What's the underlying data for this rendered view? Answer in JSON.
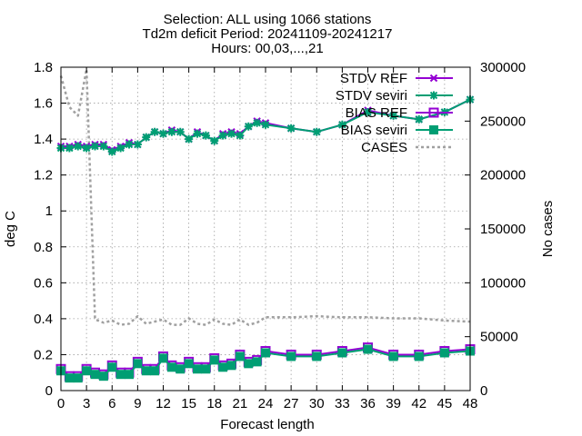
{
  "chart_data": {
    "type": "line",
    "title_lines": [
      "Selection: ALL using  1066 stations",
      "Td2m deficit   Period: 20241109-20241217",
      "Hours: 00,03,...,21"
    ],
    "xlabel": "Forecast length",
    "ylabel": "deg C",
    "y2label": "No cases",
    "xlim": [
      0,
      48
    ],
    "ylim": [
      0,
      1.8
    ],
    "y2lim": [
      0,
      300000
    ],
    "xticks": [
      0,
      3,
      6,
      9,
      12,
      15,
      18,
      21,
      24,
      27,
      30,
      33,
      36,
      39,
      42,
      45,
      48
    ],
    "yticks": [
      "0",
      "0.2",
      "0.4",
      "0.6",
      "0.8",
      "1",
      "1.2",
      "1.4",
      "1.6",
      "1.8"
    ],
    "y2ticks": [
      "0",
      "50000",
      "100000",
      "150000",
      "200000",
      "250000",
      "300000"
    ],
    "grid": true,
    "legend_position": "top-right",
    "series": [
      {
        "name": "STDV REF",
        "color": "#9400d3",
        "marker": "x",
        "axis": "y",
        "x": [
          0,
          1,
          2,
          3,
          4,
          5,
          6,
          7,
          8,
          9,
          10,
          11,
          12,
          13,
          14,
          15,
          16,
          17,
          18,
          19,
          20,
          21,
          22,
          23,
          24,
          27,
          30,
          33,
          36,
          39,
          42,
          45,
          48
        ],
        "values": [
          1.36,
          1.36,
          1.37,
          1.36,
          1.37,
          1.37,
          1.34,
          1.36,
          1.38,
          1.37,
          1.41,
          1.44,
          1.43,
          1.45,
          1.44,
          1.4,
          1.44,
          1.42,
          1.39,
          1.43,
          1.44,
          1.43,
          1.47,
          1.5,
          1.49,
          1.46,
          1.44,
          1.48,
          1.56,
          1.53,
          1.51,
          1.55,
          1.62
        ]
      },
      {
        "name": "STDV seviri",
        "color": "#009e73",
        "marker": "*",
        "axis": "y",
        "x": [
          0,
          1,
          2,
          3,
          4,
          5,
          6,
          7,
          8,
          9,
          10,
          11,
          12,
          13,
          14,
          15,
          16,
          17,
          18,
          19,
          20,
          21,
          22,
          23,
          24,
          27,
          30,
          33,
          36,
          39,
          42,
          45,
          48
        ],
        "values": [
          1.35,
          1.35,
          1.36,
          1.35,
          1.36,
          1.36,
          1.33,
          1.35,
          1.37,
          1.37,
          1.41,
          1.44,
          1.43,
          1.44,
          1.44,
          1.4,
          1.43,
          1.42,
          1.39,
          1.42,
          1.43,
          1.42,
          1.47,
          1.49,
          1.48,
          1.46,
          1.44,
          1.48,
          1.55,
          1.53,
          1.51,
          1.55,
          1.62
        ]
      },
      {
        "name": "BIAS REF",
        "color": "#9400d3",
        "marker": "square",
        "axis": "y",
        "x": [
          0,
          1,
          2,
          3,
          4,
          5,
          6,
          7,
          8,
          9,
          10,
          11,
          12,
          13,
          14,
          15,
          16,
          17,
          18,
          19,
          20,
          21,
          22,
          23,
          24,
          27,
          30,
          33,
          36,
          39,
          42,
          45,
          48
        ],
        "values": [
          0.12,
          0.08,
          0.08,
          0.12,
          0.1,
          0.09,
          0.14,
          0.1,
          0.1,
          0.16,
          0.12,
          0.12,
          0.19,
          0.14,
          0.13,
          0.16,
          0.13,
          0.13,
          0.18,
          0.14,
          0.15,
          0.2,
          0.16,
          0.17,
          0.22,
          0.2,
          0.2,
          0.22,
          0.24,
          0.2,
          0.2,
          0.22,
          0.23
        ]
      },
      {
        "name": "BIAS seviri",
        "color": "#009e73",
        "marker": "filled-square",
        "axis": "y",
        "x": [
          0,
          1,
          2,
          3,
          4,
          5,
          6,
          7,
          8,
          9,
          10,
          11,
          12,
          13,
          14,
          15,
          16,
          17,
          18,
          19,
          20,
          21,
          22,
          23,
          24,
          27,
          30,
          33,
          36,
          39,
          42,
          45,
          48
        ],
        "values": [
          0.11,
          0.07,
          0.07,
          0.11,
          0.09,
          0.08,
          0.13,
          0.09,
          0.09,
          0.15,
          0.11,
          0.11,
          0.18,
          0.13,
          0.12,
          0.15,
          0.12,
          0.12,
          0.17,
          0.13,
          0.14,
          0.19,
          0.15,
          0.16,
          0.21,
          0.19,
          0.19,
          0.21,
          0.23,
          0.19,
          0.19,
          0.21,
          0.22
        ]
      },
      {
        "name": "CASES",
        "color": "#a0a0a0",
        "dash": true,
        "axis": "y2",
        "x": [
          0,
          1,
          2,
          3,
          4,
          5,
          6,
          7,
          8,
          9,
          10,
          11,
          12,
          13,
          14,
          15,
          16,
          17,
          18,
          19,
          20,
          21,
          22,
          23,
          24,
          27,
          30,
          33,
          36,
          39,
          42,
          45,
          48
        ],
        "values": [
          292000,
          263000,
          255000,
          298000,
          66000,
          63000,
          65000,
          61000,
          62000,
          69000,
          62000,
          64000,
          66000,
          61000,
          61000,
          67000,
          62000,
          61000,
          66000,
          62000,
          61000,
          66000,
          61000,
          63000,
          68000,
          68000,
          69000,
          68000,
          68000,
          67000,
          67000,
          65000,
          64000
        ]
      }
    ]
  }
}
